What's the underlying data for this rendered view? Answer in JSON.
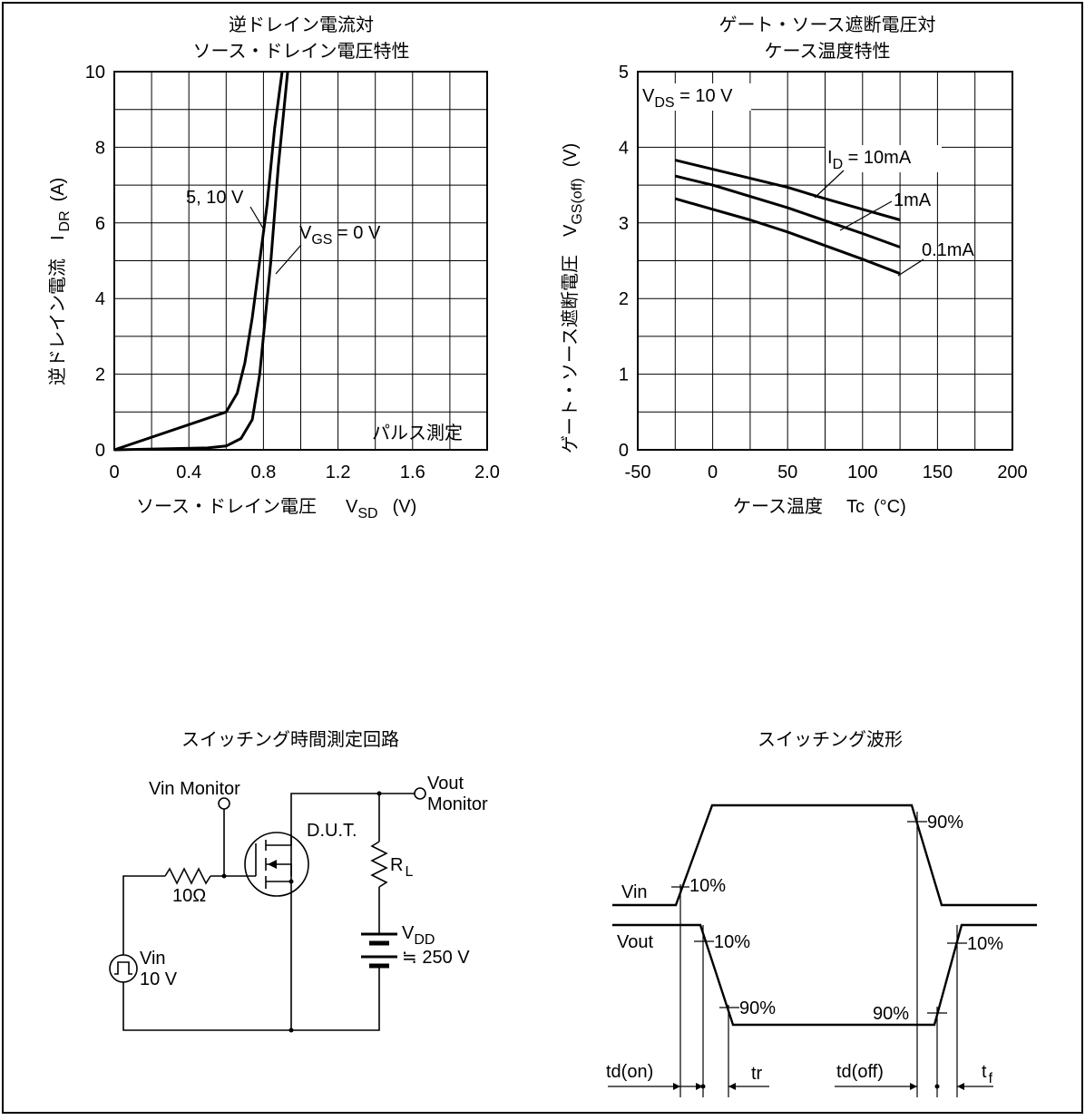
{
  "chart_data": [
    {
      "type": "line",
      "title": "逆ドレイン電流対\nソース・ドレイン電圧特性",
      "xlabel": "ソース・ドレイン電圧",
      "xsym": "V",
      "xsub": "SD",
      "xunit": "(V)",
      "ylabel": "逆ドレイン電流",
      "ysym": "I",
      "ysub": "DR",
      "yunit": "(A)",
      "xlim": [
        0,
        2.0
      ],
      "ylim": [
        0,
        10
      ],
      "xticks": [
        "0",
        "0.4",
        "0.8",
        "1.2",
        "1.6",
        "2.0"
      ],
      "yticks": [
        "0",
        "2",
        "4",
        "6",
        "8",
        "10"
      ],
      "grid": true,
      "note": "パルス測定",
      "series": [
        {
          "name": "5, 10 V",
          "x": [
            0.0,
            0.6,
            0.66,
            0.7,
            0.74,
            0.78,
            0.82,
            0.86,
            0.9
          ],
          "y": [
            0.0,
            1.0,
            1.5,
            2.3,
            3.5,
            5.0,
            6.5,
            8.5,
            10.0
          ]
        },
        {
          "name": "V_GS = 0 V",
          "x": [
            0.0,
            0.5,
            0.6,
            0.68,
            0.74,
            0.78,
            0.8,
            0.84,
            0.88,
            0.93
          ],
          "y": [
            0.0,
            0.05,
            0.1,
            0.3,
            0.8,
            2.0,
            3.0,
            5.0,
            7.5,
            10.0
          ]
        }
      ]
    },
    {
      "type": "line",
      "title": "ゲート・ソース遮断電圧対\nケース温度特性",
      "xlabel": "ケース温度",
      "xsym": "Tc",
      "xunit": "(°C)",
      "ylabel": "ゲート・ソース遮断電圧",
      "ysym": "V",
      "ysub": "GS(off)",
      "yunit": "(V)",
      "xlim": [
        -50,
        200
      ],
      "ylim": [
        0,
        5
      ],
      "xticks": [
        "-50",
        "0",
        "50",
        "100",
        "150",
        "200"
      ],
      "yticks": [
        "0",
        "1",
        "2",
        "3",
        "4",
        "5"
      ],
      "grid": true,
      "condition": "V_DS = 10 V",
      "series": [
        {
          "name": "I_D = 10mA",
          "x": [
            -25,
            0,
            25,
            50,
            75,
            100,
            125
          ],
          "y": [
            3.83,
            3.71,
            3.59,
            3.47,
            3.32,
            3.18,
            3.04
          ]
        },
        {
          "name": "1mA",
          "x": [
            -25,
            0,
            25,
            50,
            75,
            100,
            125
          ],
          "y": [
            3.62,
            3.5,
            3.35,
            3.2,
            3.03,
            2.86,
            2.68
          ]
        },
        {
          "name": "0.1mA",
          "x": [
            -25,
            0,
            25,
            50,
            75,
            100,
            125
          ],
          "y": [
            3.32,
            3.18,
            3.04,
            2.88,
            2.7,
            2.52,
            2.33
          ]
        }
      ]
    }
  ],
  "circuit": {
    "title": "スイッチング時間測定回路",
    "vin_monitor": "Vin Monitor",
    "vout_monitor_1": "Vout",
    "vout_monitor_2": "Monitor",
    "dut": "D.U.T.",
    "rl": "R",
    "rl_sub": "L",
    "vdd": "V",
    "vdd_sub": "DD",
    "vdd_value": "≒ 250 V",
    "resistor": "10Ω",
    "source_1": "Vin",
    "source_2": "10 V"
  },
  "waveform": {
    "title": "スイッチング波形",
    "vin": "Vin",
    "vout": "Vout",
    "p10_in": "10%",
    "p90_in": "90%",
    "p10_out_fall": "10%",
    "p90_out_fall": "90%",
    "p90_out_rise": "90%",
    "p10_out_rise": "10%",
    "td_on": "td(on)",
    "tr": "tr",
    "td_off": "td(off)",
    "tf": "t",
    "tf_sub": "f"
  }
}
